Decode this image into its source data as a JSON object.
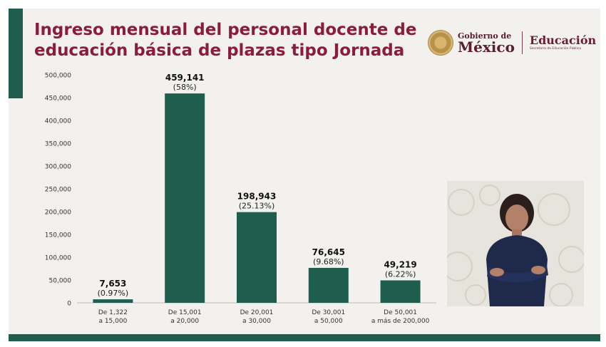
{
  "title_lines": [
    "Ingreso mensual del personal docente de",
    "educación básica de plazas tipo Jornada"
  ],
  "logos": {
    "gobierno_small": "Gobierno de",
    "gobierno_big": "México",
    "educacion_big": "Educación",
    "educacion_small": "Secretaría de Educación Pública"
  },
  "colors": {
    "bar": "#1f5d4f",
    "title": "#8a1d3c",
    "accent": "#1f5d4f"
  },
  "chart_data": {
    "type": "bar",
    "categories": [
      [
        "De 1,322",
        "a 15,000"
      ],
      [
        "De 15,001",
        "a 20,000"
      ],
      [
        "De 20,001",
        "a 30,000"
      ],
      [
        "De 30,001",
        "a 50,000"
      ],
      [
        "De 50,001",
        "a más de 200,000"
      ]
    ],
    "values": [
      7653,
      459141,
      198943,
      76645,
      49219
    ],
    "value_labels": [
      "7,653",
      "459,141",
      "198,943",
      "76,645",
      "49,219"
    ],
    "percent_labels": [
      "(0.97%)",
      "(58%)",
      "(25.13%)",
      "(9.68%)",
      "(6.22%)"
    ],
    "yticks": [
      "0",
      "50,000",
      "100,000",
      "150,000",
      "200,000",
      "250,000",
      "300,000",
      "350,000",
      "400,000",
      "450,000",
      "500,000"
    ],
    "ylim": [
      0,
      500000
    ],
    "grid": false
  }
}
